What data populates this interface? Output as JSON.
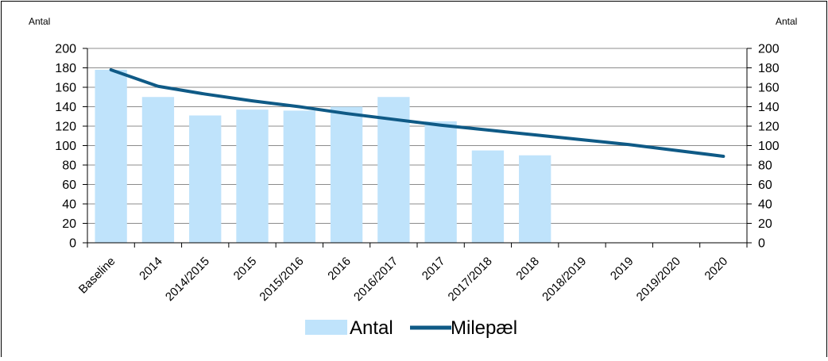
{
  "chart_data": {
    "type": "bar",
    "categories": [
      "Baseline",
      "2014",
      "2014/2015",
      "2015",
      "2015/2016",
      "2016",
      "2016/2017",
      "2017",
      "2017/2018",
      "2018",
      "2018/2019",
      "2019",
      "2019/2020",
      "2020"
    ],
    "series": [
      {
        "name": "Antal",
        "type": "bar",
        "axis": "left",
        "color": "#bfe3fb",
        "values": [
          178,
          150,
          131,
          137,
          136,
          140,
          150,
          125,
          95,
          90,
          null,
          null,
          null,
          null
        ]
      },
      {
        "name": "Milepæl",
        "type": "line",
        "axis": "right",
        "color": "#0f5a86",
        "values": [
          178,
          161,
          153,
          146,
          140,
          133,
          127,
          121,
          116,
          111,
          106,
          101,
          95,
          89
        ]
      }
    ],
    "ylabel_left": "Antal",
    "ylabel_right": "Antal",
    "ylim": [
      0,
      200
    ],
    "yticks": [
      0,
      20,
      40,
      60,
      80,
      100,
      120,
      140,
      160,
      180,
      200
    ],
    "grid": true,
    "legend": "bottom-center"
  }
}
